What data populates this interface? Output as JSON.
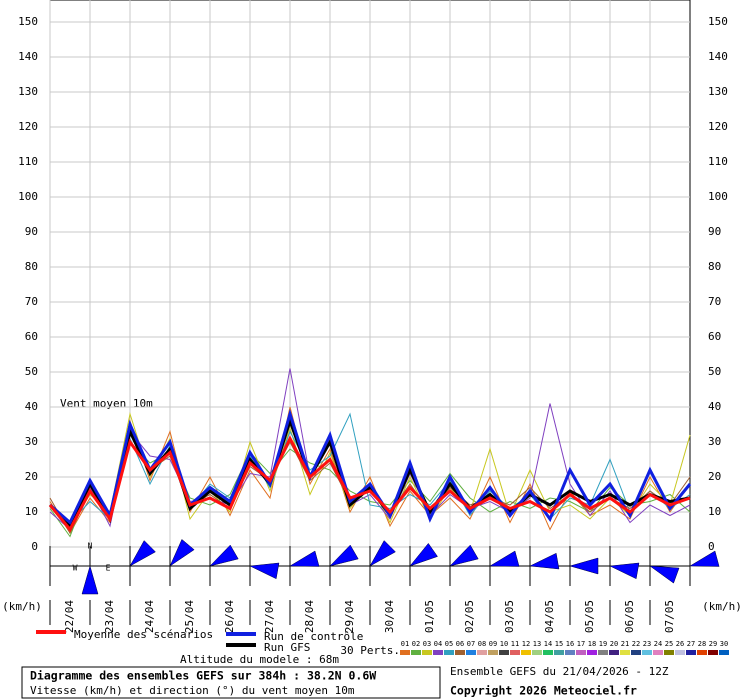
{
  "chart_data": {
    "type": "line",
    "annotation": "Vent moyen 10m",
    "y_unit_left": "(km/h)",
    "y_unit_right": "(km/h)",
    "xlim": [
      0,
      384
    ],
    "xticks": [
      {
        "value": 12,
        "label": "22/04"
      },
      {
        "value": 36,
        "label": "23/04"
      },
      {
        "value": 60,
        "label": "24/04"
      },
      {
        "value": 84,
        "label": "25/04"
      },
      {
        "value": 108,
        "label": "26/04"
      },
      {
        "value": 132,
        "label": "27/04"
      },
      {
        "value": 156,
        "label": "28/04"
      },
      {
        "value": 180,
        "label": "29/04"
      },
      {
        "value": 204,
        "label": "30/04"
      },
      {
        "value": 228,
        "label": "01/05"
      },
      {
        "value": 252,
        "label": "02/05"
      },
      {
        "value": 276,
        "label": "03/05"
      },
      {
        "value": 300,
        "label": "04/05"
      },
      {
        "value": 324,
        "label": "05/05"
      },
      {
        "value": 348,
        "label": "06/05"
      },
      {
        "value": 372,
        "label": "07/05"
      }
    ],
    "ylim": [
      0,
      150
    ],
    "yticks": [
      0,
      10,
      20,
      30,
      40,
      50,
      60,
      70,
      80,
      90,
      100,
      110,
      120,
      130,
      140,
      150
    ],
    "grid": true,
    "x": [
      0,
      12,
      24,
      36,
      48,
      60,
      72,
      84,
      96,
      108,
      120,
      132,
      144,
      156,
      168,
      180,
      192,
      204,
      216,
      228,
      240,
      252,
      264,
      276,
      288,
      300,
      312,
      324,
      336,
      348,
      360,
      372,
      384
    ],
    "series": [
      {
        "name": "01",
        "color": "#e07020",
        "values": [
          13,
          4,
          14,
          7,
          36,
          19,
          33,
          10,
          20,
          9,
          22,
          14,
          40,
          18,
          28,
          10,
          20,
          6,
          16,
          9,
          14,
          8,
          20,
          7,
          18,
          5,
          16,
          9,
          12,
          8,
          20,
          10,
          18
        ]
      },
      {
        "name": "02",
        "color": "#60b040",
        "values": [
          11,
          3,
          18,
          9,
          30,
          24,
          27,
          14,
          12,
          15,
          27,
          21,
          28,
          24,
          22,
          16,
          13,
          12,
          19,
          13,
          21,
          14,
          10,
          13,
          11,
          14,
          13,
          10,
          17,
          12,
          13,
          15,
          10
        ]
      },
      {
        "name": "03",
        "color": "#c8c820",
        "values": [
          12,
          6,
          15,
          10,
          38,
          20,
          31,
          8,
          16,
          10,
          30,
          16,
          34,
          15,
          27,
          11,
          18,
          7,
          20,
          8,
          17,
          10,
          28,
          9,
          22,
          10,
          12,
          8,
          14,
          9,
          18,
          12,
          32
        ]
      },
      {
        "name": "04",
        "color": "#8040c0",
        "values": [
          10,
          5,
          17,
          6,
          33,
          26,
          25,
          13,
          14,
          12,
          21,
          20,
          51,
          20,
          30,
          12,
          15,
          8,
          21,
          9,
          15,
          11,
          13,
          10,
          14,
          41,
          18,
          9,
          16,
          7,
          12,
          9,
          12
        ]
      },
      {
        "name": "05",
        "color": "#30a0c0",
        "values": [
          12,
          7,
          13,
          8,
          31,
          18,
          29,
          11,
          18,
          14,
          26,
          17,
          33,
          22,
          26,
          38,
          12,
          11,
          15,
          12,
          19,
          9,
          16,
          11,
          15,
          8,
          14,
          12,
          25,
          10,
          16,
          11,
          15
        ]
      },
      {
        "name": "06",
        "color": "#a06030",
        "values": [
          14,
          4,
          16,
          9,
          34,
          22,
          26,
          12,
          15,
          11,
          23,
          19,
          30,
          19,
          24,
          13,
          16,
          10,
          18,
          10,
          17,
          12,
          14,
          12,
          17,
          11,
          15,
          10,
          14,
          11,
          16,
          12,
          20
        ]
      },
      {
        "name": "Run GFS",
        "color": "#000000",
        "width": 3,
        "values": [
          12,
          6,
          18,
          8,
          33,
          21,
          28,
          11,
          16,
          12,
          25,
          18,
          36,
          20,
          30,
          12,
          17,
          9,
          22,
          10,
          18,
          11,
          15,
          10,
          15,
          12,
          16,
          13,
          15,
          12,
          15,
          13,
          14
        ]
      },
      {
        "name": "Run de contrôle",
        "color": "#1020e0",
        "width": 3,
        "values": [
          12,
          7,
          19,
          9,
          35,
          22,
          30,
          12,
          17,
          13,
          27,
          18,
          38,
          20,
          32,
          13,
          18,
          9,
          24,
          8,
          20,
          10,
          17,
          9,
          16,
          8,
          22,
          12,
          18,
          9,
          22,
          11,
          18
        ]
      },
      {
        "name": "Moyenne des scénarios",
        "color": "#ff1010",
        "width": 3,
        "values": [
          12,
          5,
          16,
          8,
          30,
          22,
          27,
          12,
          14,
          11,
          24,
          19,
          31,
          20,
          25,
          14,
          16,
          10,
          17,
          11,
          16,
          11,
          14,
          11,
          13,
          10,
          15,
          11,
          14,
          10,
          15,
          12,
          14
        ]
      }
    ],
    "legend_main": [
      8,
      7,
      6
    ],
    "perturbations_title": "30 Perts.",
    "perturbation_legend": [
      {
        "label": "01",
        "color": "#e07020"
      },
      {
        "label": "02",
        "color": "#60b040"
      },
      {
        "label": "03",
        "color": "#c8c820"
      },
      {
        "label": "04",
        "color": "#8040c0"
      },
      {
        "label": "05",
        "color": "#30a0c0"
      },
      {
        "label": "06",
        "color": "#a06030"
      },
      {
        "label": "07",
        "color": "#2080e0"
      },
      {
        "label": "08",
        "color": "#e0a0a0"
      },
      {
        "label": "09",
        "color": "#c0a060"
      },
      {
        "label": "10",
        "color": "#404040"
      },
      {
        "label": "11",
        "color": "#e06060"
      },
      {
        "label": "12",
        "color": "#f0c000"
      },
      {
        "label": "13",
        "color": "#a0d080"
      },
      {
        "label": "14",
        "color": "#20c060"
      },
      {
        "label": "15",
        "color": "#40a0a0"
      },
      {
        "label": "16",
        "color": "#6080c0"
      },
      {
        "label": "17",
        "color": "#c060c0"
      },
      {
        "label": "18",
        "color": "#a020e0"
      },
      {
        "label": "19",
        "color": "#808080"
      },
      {
        "label": "20",
        "color": "#402080"
      },
      {
        "label": "21",
        "color": "#e0e040"
      },
      {
        "label": "22",
        "color": "#204080"
      },
      {
        "label": "23",
        "color": "#60c0e0"
      },
      {
        "label": "24",
        "color": "#e080c0"
      },
      {
        "label": "25",
        "color": "#808000"
      },
      {
        "label": "26",
        "color": "#c0c0e0"
      },
      {
        "label": "27",
        "color": "#2020a0"
      },
      {
        "label": "28",
        "color": "#e04000"
      },
      {
        "label": "29",
        "color": "#800000"
      },
      {
        "label": "30",
        "color": "#0060c0"
      }
    ],
    "wind_direction": [
      null,
      180,
      45,
      40,
      60,
      100,
      75,
      60,
      45,
      55,
      60,
      75,
      80,
      90,
      100,
      110,
      75
    ],
    "compass": [
      "N",
      "W",
      "E"
    ],
    "altitude": "Altitude du modele : 68m",
    "info_title": "Diagramme des ensembles GEFS sur 384h : 38.2N 0.6W",
    "info_subtitle": "Vitesse (km/h) et direction (°) du vent moyen 10m",
    "run_info": "Ensemble GEFS du 21/04/2026 - 12Z",
    "copyright": "Copyright 2026 Meteociel.fr"
  }
}
